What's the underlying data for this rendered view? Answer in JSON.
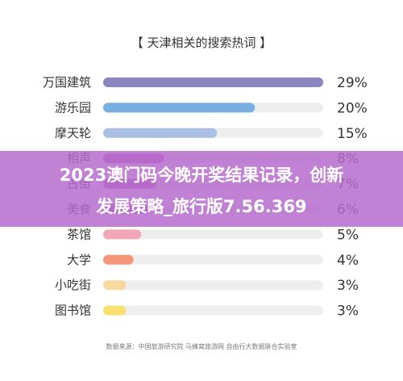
{
  "chart_data": {
    "type": "bar",
    "orientation": "horizontal",
    "title": "【 天津相关的搜索热词 】",
    "categories": [
      "万国建筑",
      "游乐园",
      "摩天轮",
      "相声",
      "古街",
      "美食",
      "茶馆",
      "大学",
      "小吃街",
      "图书馆"
    ],
    "values": [
      29,
      20,
      15,
      8,
      7,
      6,
      5,
      4,
      3,
      3
    ],
    "value_labels": [
      "29%",
      "20%",
      "15%",
      "8%",
      "7%",
      "6%",
      "5%",
      "4%",
      "3%",
      "3%"
    ],
    "bar_colors": [
      "#8c86c0",
      "#76afe0",
      "#aabfe3",
      "#c05fb5",
      "#c05fb5",
      "#c05fb5",
      "#f1a7b7",
      "#f3967a",
      "#f7d9a0",
      "#f8e06e"
    ],
    "track_color": "#eeeeee",
    "xlim": [
      0,
      29
    ],
    "grid": false,
    "source": "数据来源：中国旅游研究院 马蜂窝旅游网 自由行大数据联合实验室"
  },
  "overlay": {
    "line1": "2023澳门码今晚开奖结果记录，创新",
    "line2": "发展策略_旅行版7.56.369",
    "color": "#b66ccf"
  }
}
